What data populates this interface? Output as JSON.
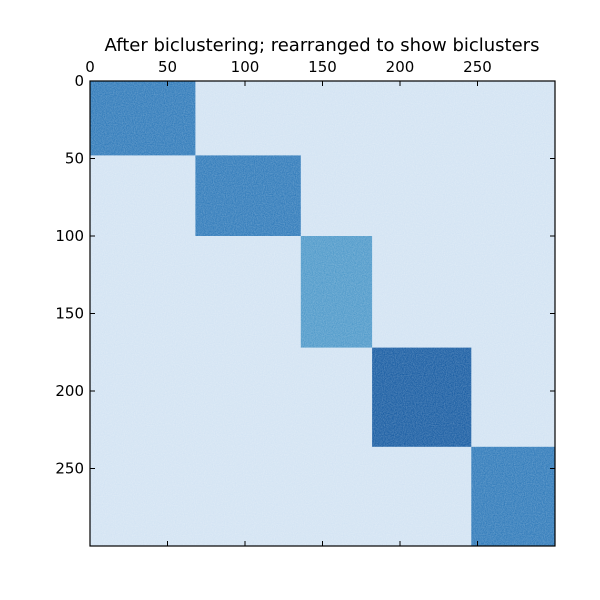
{
  "chart_data": {
    "type": "heatmap",
    "title": "After biclustering; rearranged to show biclusters",
    "xlabel": "",
    "ylabel": "",
    "x_axis_position": "top",
    "y_axis_inverted": true,
    "shape": [
      300,
      300
    ],
    "xlim": [
      0,
      300
    ],
    "ylim": [
      300,
      0
    ],
    "x_ticks": [
      0,
      50,
      100,
      150,
      200,
      250
    ],
    "y_ticks": [
      0,
      50,
      100,
      150,
      200,
      250
    ],
    "colormap": "Blues",
    "background_color": "#cfe1f2",
    "grid": false,
    "biclusters": [
      {
        "rows": [
          0,
          48
        ],
        "cols": [
          0,
          68
        ],
        "color": "#2171b5"
      },
      {
        "rows": [
          48,
          100
        ],
        "cols": [
          68,
          136
        ],
        "color": "#2171b5"
      },
      {
        "rows": [
          100,
          172
        ],
        "cols": [
          136,
          182
        ],
        "color": "#4292c6"
      },
      {
        "rows": [
          172,
          236
        ],
        "cols": [
          182,
          246
        ],
        "color": "#08519c"
      },
      {
        "rows": [
          236,
          300
        ],
        "cols": [
          246,
          300
        ],
        "color": "#2171b5"
      }
    ]
  }
}
